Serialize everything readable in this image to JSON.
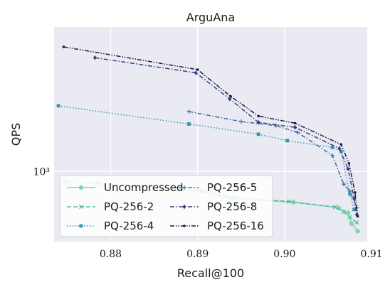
{
  "chart_data": {
    "type": "line",
    "title": "ArguAna",
    "xlabel": "Recall@100",
    "ylabel": "QPS",
    "xlim": [
      0.8735,
      0.9095
    ],
    "ylim": [
      560,
      3300
    ],
    "y_scale": "log",
    "x_ticks": [
      0.88,
      0.89,
      0.9,
      0.91
    ],
    "x_tick_labels": [
      "0.88",
      "0.89",
      "0.90",
      "0.91"
    ],
    "y_ticks": [
      1000
    ],
    "y_tick_labels": [
      "10³"
    ],
    "grid": true,
    "legend": "lower-left",
    "legend_columns": 2,
    "series": [
      {
        "name": "Uncompressed",
        "color": "#7fd7a2",
        "dash": "solid",
        "marker": "circle",
        "x": [
          0.8747,
          0.8901,
          0.8937,
          0.901,
          0.9062,
          0.9073,
          0.9077,
          0.9084
        ],
        "y": [
          920,
          850,
          800,
          775,
          740,
          710,
          650,
          610
        ]
      },
      {
        "name": "PQ-256-2",
        "color": "#4fbfa3",
        "dash": "dash",
        "marker": "x",
        "x": [
          0.8783,
          0.8906,
          0.8942,
          0.9005,
          0.9058,
          0.9068,
          0.9075,
          0.9083
        ],
        "y": [
          910,
          850,
          805,
          780,
          745,
          715,
          685,
          655
        ]
      },
      {
        "name": "PQ-256-4",
        "color": "#3595b0",
        "dash": "dot",
        "marker": "square",
        "x": [
          0.874,
          0.889,
          0.897,
          0.9003,
          0.9055,
          0.9065,
          0.9075,
          0.908
        ],
        "y": [
          1720,
          1480,
          1360,
          1290,
          1220,
          1180,
          830,
          730
        ]
      },
      {
        "name": "PQ-256-5",
        "color": "#3d6ea3",
        "dash": "dashdot",
        "marker": "plus",
        "x": [
          0.889,
          0.895,
          0.899,
          0.9015,
          0.9055,
          0.9068,
          0.9075,
          0.9083
        ],
        "y": [
          1640,
          1510,
          1460,
          1380,
          1140,
          900,
          850,
          740
        ]
      },
      {
        "name": "PQ-256-8",
        "color": "#3b3a82",
        "dash": "dashdot",
        "marker": "diamond",
        "x": [
          0.8782,
          0.8898,
          0.8937,
          0.897,
          0.9012,
          0.9063,
          0.9073,
          0.908,
          0.9083
        ],
        "y": [
          2560,
          2260,
          1820,
          1500,
          1440,
          1210,
          1020,
          800,
          700
        ]
      },
      {
        "name": "PQ-256-16",
        "color": "#1f1a3c",
        "dash": "dashdotdot",
        "marker": "dot",
        "x": [
          0.8746,
          0.89,
          0.8938,
          0.897,
          0.9012,
          0.9065,
          0.9074,
          0.9081,
          0.9084
        ],
        "y": [
          2800,
          2320,
          1860,
          1580,
          1490,
          1250,
          1070,
          840,
          690
        ]
      }
    ]
  }
}
